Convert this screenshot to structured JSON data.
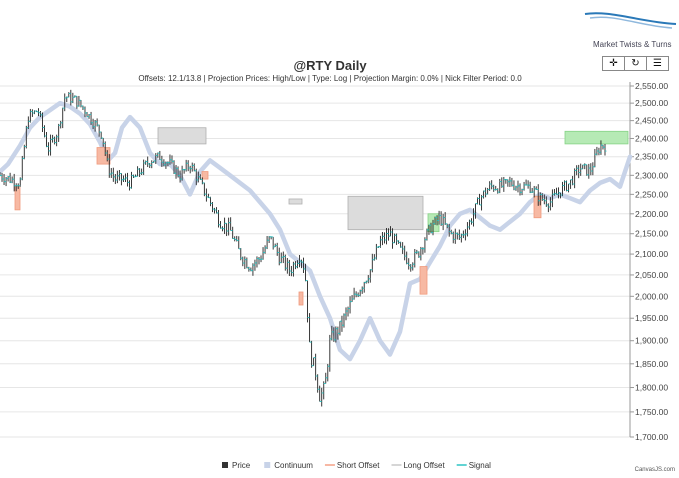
{
  "brand": {
    "name": "Market Twists & Turns"
  },
  "toolbar": {
    "buttons": [
      {
        "name": "pan-button",
        "icon": "move-icon",
        "glyph": "✛"
      },
      {
        "name": "reset-button",
        "icon": "refresh-icon",
        "glyph": "↻"
      },
      {
        "name": "menu-button",
        "icon": "hamburger-menu-icon",
        "glyph": "☰"
      }
    ]
  },
  "credit": "CanvasJS.com",
  "chart_data": {
    "type": "line",
    "title": "@RTY Daily",
    "subtitle": "Offsets: 12.1/13.8 | Projection Prices: High/Low | Type: Log | Projection Margin: 0.0% | Nick Filter Period: 0.0",
    "y_axis_position": "right",
    "ylim": [
      1700,
      2550
    ],
    "y_ticks": [
      "2,550.00",
      "2,500.00",
      "2,450.00",
      "2,400.00",
      "2,350.00",
      "2,300.00",
      "2,250.00",
      "2,200.00",
      "2,150.00",
      "2,100.00",
      "2,050.00",
      "2,000.00",
      "1,950.00",
      "1,900.00",
      "1,850.00",
      "1,800.00",
      "1,750.00",
      "1,700.00"
    ],
    "y_tick_values": [
      2550,
      2500,
      2450,
      2400,
      2350,
      2300,
      2250,
      2200,
      2150,
      2100,
      2050,
      2000,
      1950,
      1900,
      1850,
      1800,
      1750,
      1700
    ],
    "grid": true,
    "legend_position": "bottom",
    "legend": [
      {
        "name": "Price",
        "color": "#333333",
        "marker": "square"
      },
      {
        "name": "Continuum",
        "color": "#c8d3e8",
        "marker": "square"
      },
      {
        "name": "Short Offset",
        "color": "#f4a085",
        "marker": "line"
      },
      {
        "name": "Long Offset",
        "color": "#c8c8c8",
        "marker": "line"
      },
      {
        "name": "Signal",
        "color": "#2ec4c4",
        "marker": "line"
      }
    ],
    "x_count": 300,
    "price_keypoints": [
      [
        0,
        2300
      ],
      [
        10,
        2290
      ],
      [
        20,
        2280
      ],
      [
        28,
        2460
      ],
      [
        38,
        2480
      ],
      [
        48,
        2370
      ],
      [
        58,
        2420
      ],
      [
        65,
        2520
      ],
      [
        75,
        2510
      ],
      [
        85,
        2480
      ],
      [
        95,
        2440
      ],
      [
        102,
        2410
      ],
      [
        108,
        2320
      ],
      [
        115,
        2290
      ],
      [
        122,
        2290
      ],
      [
        130,
        2280
      ],
      [
        140,
        2310
      ],
      [
        150,
        2340
      ],
      [
        160,
        2350
      ],
      [
        170,
        2330
      ],
      [
        180,
        2300
      ],
      [
        190,
        2330
      ],
      [
        200,
        2280
      ],
      [
        210,
        2230
      ],
      [
        220,
        2180
      ],
      [
        230,
        2160
      ],
      [
        240,
        2100
      ],
      [
        250,
        2070
      ],
      [
        260,
        2090
      ],
      [
        270,
        2140
      ],
      [
        280,
        2090
      ],
      [
        290,
        2060
      ],
      [
        300,
        2100
      ],
      [
        305,
        2060
      ],
      [
        310,
        1870
      ],
      [
        315,
        1840
      ],
      [
        320,
        1780
      ],
      [
        325,
        1800
      ],
      [
        330,
        1900
      ],
      [
        340,
        1930
      ],
      [
        350,
        1980
      ],
      [
        360,
        2020
      ],
      [
        370,
        2060
      ],
      [
        380,
        2130
      ],
      [
        390,
        2150
      ],
      [
        400,
        2110
      ],
      [
        410,
        2080
      ],
      [
        418,
        2100
      ],
      [
        425,
        2140
      ],
      [
        432,
        2170
      ],
      [
        440,
        2190
      ],
      [
        450,
        2150
      ],
      [
        460,
        2140
      ],
      [
        470,
        2180
      ],
      [
        480,
        2240
      ],
      [
        490,
        2270
      ],
      [
        500,
        2270
      ],
      [
        510,
        2280
      ],
      [
        520,
        2270
      ],
      [
        530,
        2270
      ],
      [
        540,
        2240
      ],
      [
        550,
        2230
      ],
      [
        560,
        2260
      ],
      [
        570,
        2280
      ],
      [
        580,
        2320
      ],
      [
        590,
        2310
      ],
      [
        600,
        2380
      ],
      [
        605,
        2380
      ]
    ],
    "continuum_keypoints": [
      [
        0,
        2310
      ],
      [
        8,
        2330
      ],
      [
        20,
        2380
      ],
      [
        30,
        2430
      ],
      [
        40,
        2460
      ],
      [
        50,
        2480
      ],
      [
        60,
        2500
      ],
      [
        70,
        2490
      ],
      [
        80,
        2470
      ],
      [
        90,
        2440
      ],
      [
        100,
        2390
      ],
      [
        108,
        2340
      ],
      [
        115,
        2360
      ],
      [
        122,
        2430
      ],
      [
        130,
        2460
      ],
      [
        140,
        2430
      ],
      [
        150,
        2360
      ],
      [
        160,
        2330
      ],
      [
        170,
        2330
      ],
      [
        180,
        2300
      ],
      [
        190,
        2250
      ],
      [
        200,
        2310
      ],
      [
        210,
        2340
      ],
      [
        220,
        2320
      ],
      [
        230,
        2300
      ],
      [
        240,
        2280
      ],
      [
        250,
        2260
      ],
      [
        260,
        2230
      ],
      [
        270,
        2200
      ],
      [
        280,
        2160
      ],
      [
        290,
        2100
      ],
      [
        300,
        2080
      ],
      [
        310,
        2060
      ],
      [
        320,
        2000
      ],
      [
        330,
        1950
      ],
      [
        340,
        1880
      ],
      [
        350,
        1860
      ],
      [
        360,
        1900
      ],
      [
        370,
        1950
      ],
      [
        380,
        1900
      ],
      [
        390,
        1870
      ],
      [
        400,
        1920
      ],
      [
        410,
        2030
      ],
      [
        420,
        2040
      ],
      [
        430,
        2080
      ],
      [
        440,
        2120
      ],
      [
        450,
        2170
      ],
      [
        460,
        2200
      ],
      [
        470,
        2210
      ],
      [
        480,
        2190
      ],
      [
        490,
        2170
      ],
      [
        500,
        2160
      ],
      [
        510,
        2180
      ],
      [
        520,
        2200
      ],
      [
        530,
        2230
      ],
      [
        540,
        2250
      ],
      [
        550,
        2240
      ],
      [
        560,
        2250
      ],
      [
        570,
        2240
      ],
      [
        580,
        2230
      ],
      [
        590,
        2260
      ],
      [
        600,
        2280
      ],
      [
        610,
        2290
      ],
      [
        620,
        2270
      ],
      [
        630,
        2350
      ]
    ],
    "long_offset_boxes": [
      {
        "x1": 158,
        "x2": 206,
        "y_top": 2430,
        "y_bottom": 2385
      },
      {
        "x1": 289,
        "x2": 302,
        "y_top": 2238,
        "y_bottom": 2225
      },
      {
        "x1": 348,
        "x2": 423,
        "y_top": 2245,
        "y_bottom": 2160
      }
    ],
    "short_offset_boxes": [
      {
        "x1": 15,
        "x2": 20,
        "y_top": 2270,
        "y_bottom": 2210
      },
      {
        "x1": 97,
        "x2": 110,
        "y_top": 2375,
        "y_bottom": 2330
      },
      {
        "x1": 202,
        "x2": 208,
        "y_top": 2310,
        "y_bottom": 2290
      },
      {
        "x1": 299,
        "x2": 303,
        "y_top": 2010,
        "y_bottom": 1980
      },
      {
        "x1": 420,
        "x2": 427,
        "y_top": 2070,
        "y_bottom": 2005
      },
      {
        "x1": 534,
        "x2": 541,
        "y_top": 2245,
        "y_bottom": 2190
      }
    ],
    "signal_boxes": [
      {
        "x1": 428,
        "x2": 439,
        "y_top": 2200,
        "y_bottom": 2155
      },
      {
        "x1": 565,
        "x2": 628,
        "y_top": 2420,
        "y_bottom": 2385
      }
    ]
  }
}
